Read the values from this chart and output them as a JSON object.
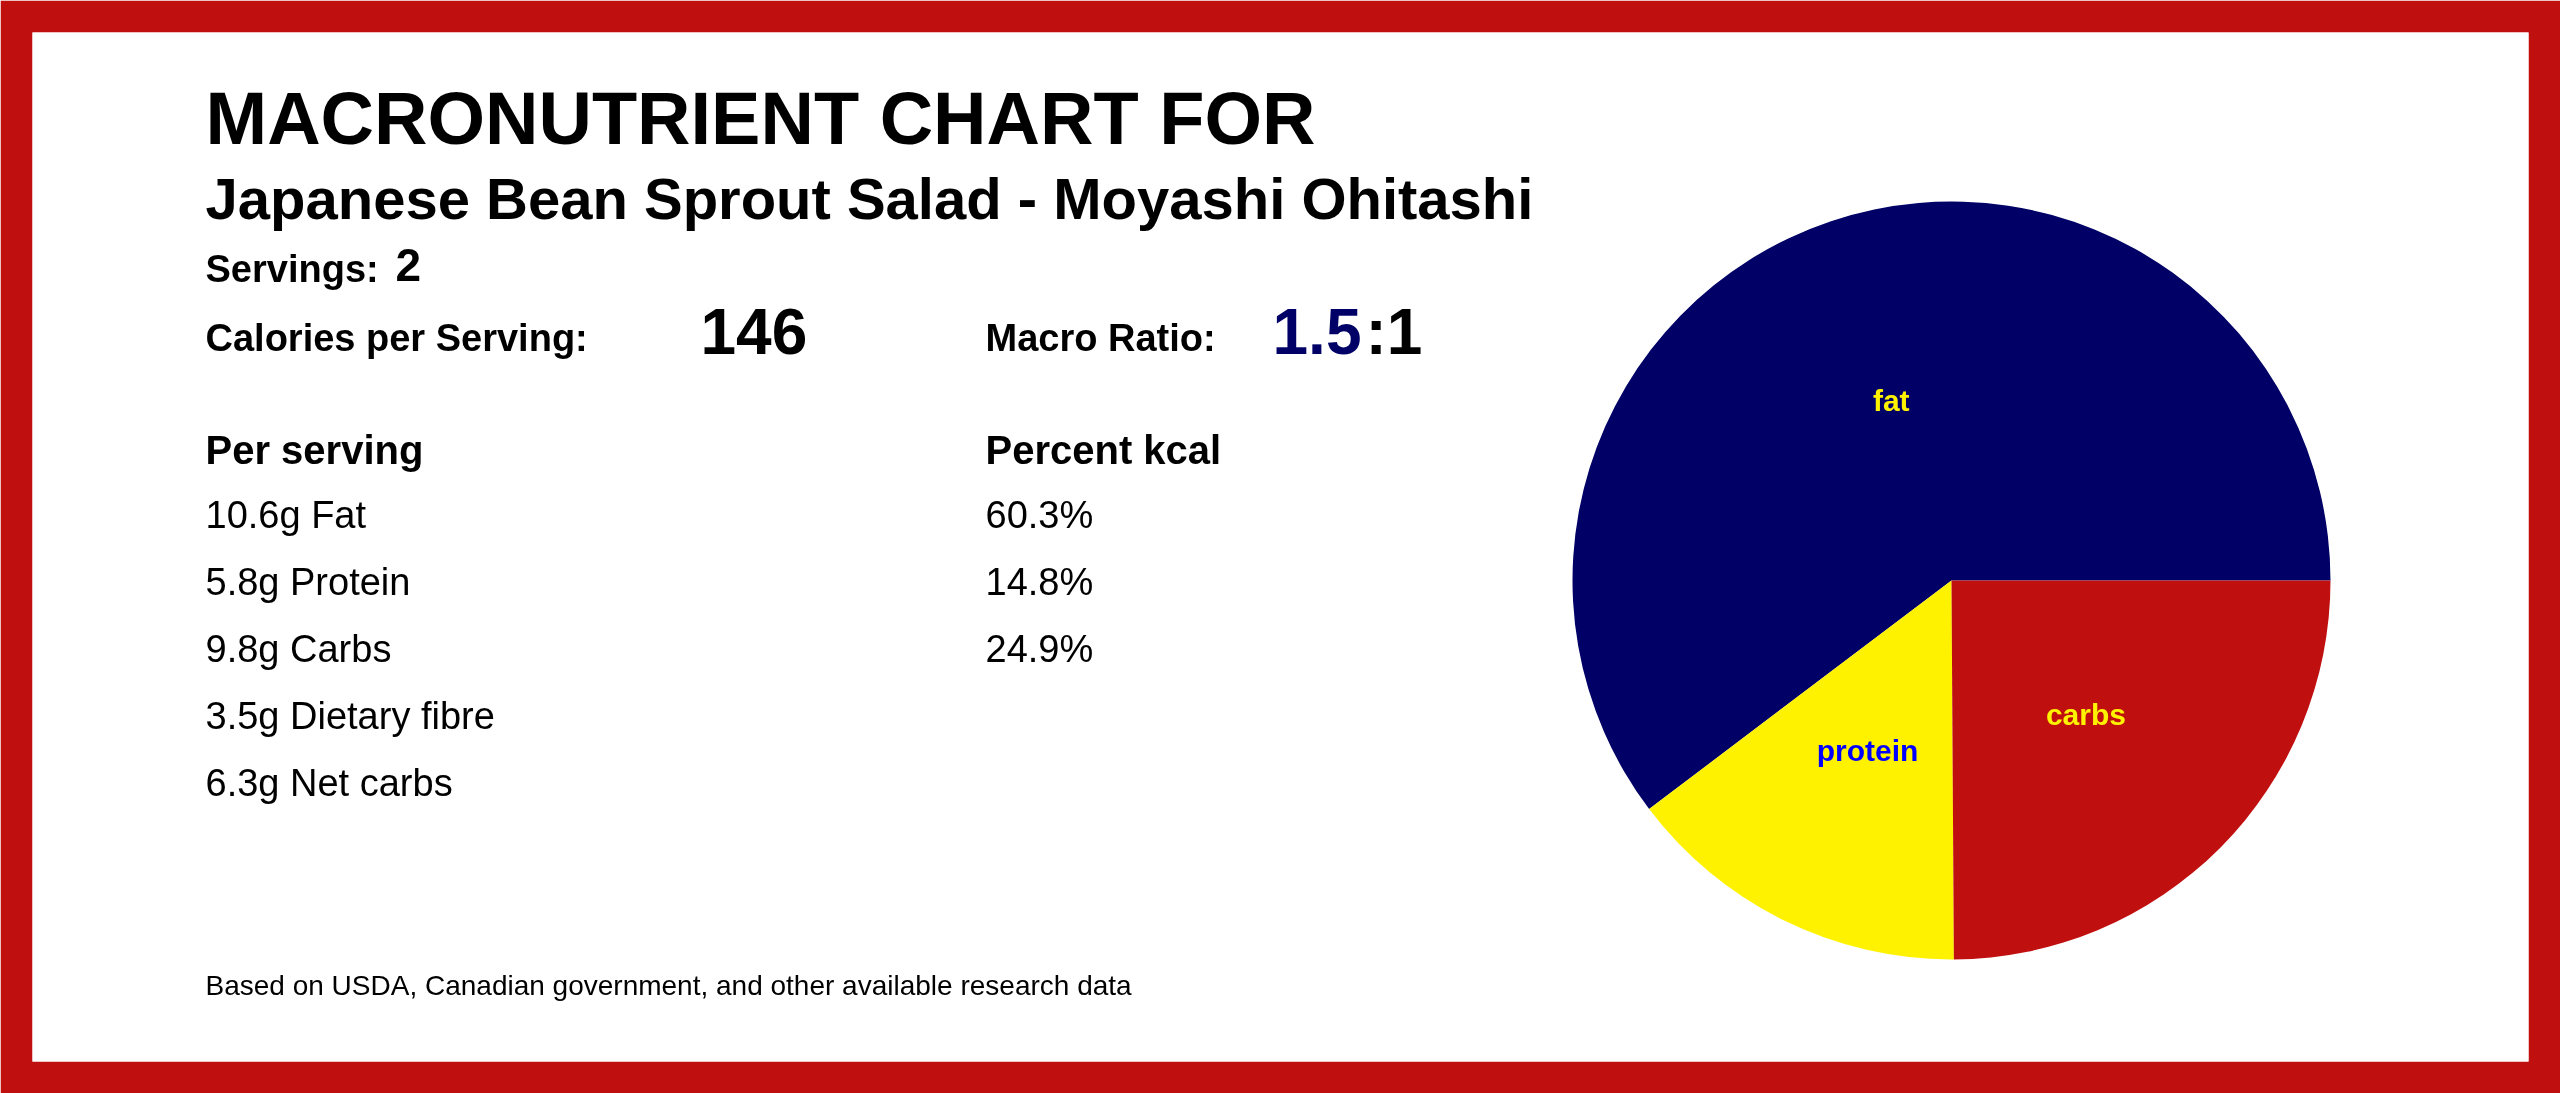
{
  "chart_data": {
    "type": "pie",
    "title": "MACRONUTRIENT CHART FOR",
    "subtitle": "Japanese Bean Sprout Salad - Moyashi Ohitashi",
    "categories": [
      "fat",
      "protein",
      "carbs"
    ],
    "values": [
      60.3,
      14.8,
      24.9
    ],
    "colors": [
      "#000066",
      "#fff200",
      "#c00f0f"
    ],
    "annotations": [
      "Servings:",
      "2",
      "Calories per Serving:",
      "146",
      "Macro Ratio:",
      "1.5",
      ":1",
      "Per serving",
      "10.6g Fat",
      "5.8g Protein",
      "9.8g Carbs",
      "3.5g Dietary fibre",
      "6.3g Net carbs",
      "Percent kcal",
      "Based on USDA, Canadian government, and other available research data",
      "60.3%",
      "14.8%",
      "24.9%"
    ]
  }
}
